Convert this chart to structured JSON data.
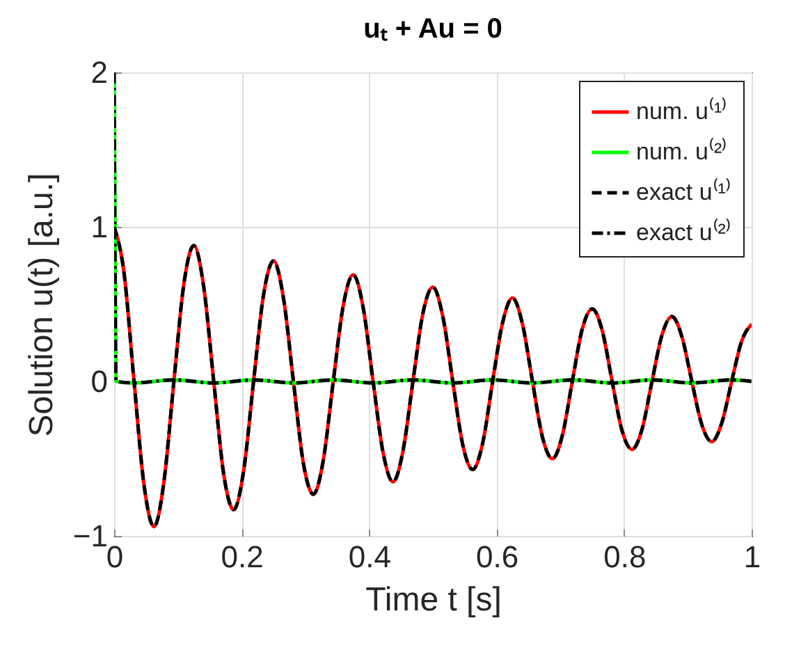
{
  "chart_data": {
    "type": "line",
    "title": "uₜ + Au = 0",
    "xlabel": "Time t [s]",
    "ylabel": "Solution u(t) [a.u.]",
    "xlim": [
      0,
      1
    ],
    "xticks": [
      0,
      0.2,
      0.4,
      0.6,
      0.8,
      1
    ],
    "ylim": [
      -1,
      2
    ],
    "yticks": [
      -1,
      0,
      1,
      2
    ],
    "grid": true,
    "legend": "top right",
    "series": [
      {
        "name": "num. u⁽¹⁾",
        "color": "#ff0000",
        "line_style": "solid",
        "x": [
          0,
          0.015625,
          0.03125,
          0.046875,
          0.0625,
          0.078125,
          0.09375,
          0.109375,
          0.125,
          0.140625,
          0.15625,
          0.171875,
          0.1875,
          0.203125,
          0.21875,
          0.234375,
          0.25,
          0.265625,
          0.28125,
          0.296875,
          0.3125,
          0.328125,
          0.34375,
          0.359375,
          0.375,
          0.390625,
          0.40625,
          0.421875,
          0.4375,
          0.453125,
          0.46875,
          0.484375,
          0.5,
          0.515625,
          0.53125,
          0.546875,
          0.5625,
          0.578125,
          0.59375,
          0.609375,
          0.625,
          0.640625,
          0.65625,
          0.671875,
          0.6875,
          0.703125,
          0.71875,
          0.734375,
          0.75,
          0.765625,
          0.78125,
          0.796875,
          0.8125,
          0.828125,
          0.84375,
          0.859375,
          0.875,
          0.890625,
          0.90625,
          0.921875,
          0.9375,
          0.953125,
          0.96875,
          0.984375,
          1
        ],
        "values": [
          1,
          0.7,
          0,
          -0.67,
          -0.94,
          -0.65,
          0,
          0.63,
          0.88,
          0.61,
          0,
          -0.6,
          -0.83,
          -0.58,
          0,
          0.56,
          0.78,
          0.54,
          0,
          -0.53,
          -0.73,
          -0.51,
          0,
          0.49,
          0.69,
          0.48,
          0,
          -0.46,
          -0.65,
          -0.45,
          0,
          0.44,
          0.61,
          0.42,
          0,
          -0.41,
          -0.57,
          -0.4,
          0,
          0.38,
          0.54,
          0.37,
          0,
          -0.36,
          -0.5,
          -0.35,
          0,
          0.34,
          0.47,
          0.33,
          0,
          -0.32,
          -0.44,
          -0.31,
          0,
          0.3,
          0.42,
          0.29,
          0,
          -0.28,
          -0.39,
          -0.27,
          0,
          0.26,
          0.37
        ]
      },
      {
        "name": "num. u⁽²⁾",
        "color": "#00ff00",
        "line_style": "solid",
        "x": [
          0,
          0.003,
          0.03125,
          0.09375,
          0.15625,
          0.21875,
          0.28125,
          0.34375,
          0.40625,
          0.46875,
          0.53125,
          0.59375,
          0.65625,
          0.71875,
          0.78125,
          0.84375,
          0.90625,
          0.96875,
          1
        ],
        "values": [
          2,
          0,
          -0.01,
          0.01,
          -0.01,
          0.01,
          -0.01,
          0.01,
          -0.01,
          0.01,
          -0.01,
          0.01,
          -0.01,
          0.01,
          -0.01,
          0.01,
          -0.01,
          0.01,
          0
        ]
      },
      {
        "name": "exact u⁽¹⁾",
        "color": "#000000",
        "line_style": "dashed",
        "x": [
          0,
          0.015625,
          0.03125,
          0.046875,
          0.0625,
          0.078125,
          0.09375,
          0.109375,
          0.125,
          0.140625,
          0.15625,
          0.171875,
          0.1875,
          0.203125,
          0.21875,
          0.234375,
          0.25,
          0.265625,
          0.28125,
          0.296875,
          0.3125,
          0.328125,
          0.34375,
          0.359375,
          0.375,
          0.390625,
          0.40625,
          0.421875,
          0.4375,
          0.453125,
          0.46875,
          0.484375,
          0.5,
          0.515625,
          0.53125,
          0.546875,
          0.5625,
          0.578125,
          0.59375,
          0.609375,
          0.625,
          0.640625,
          0.65625,
          0.671875,
          0.6875,
          0.703125,
          0.71875,
          0.734375,
          0.75,
          0.765625,
          0.78125,
          0.796875,
          0.8125,
          0.828125,
          0.84375,
          0.859375,
          0.875,
          0.890625,
          0.90625,
          0.921875,
          0.9375,
          0.953125,
          0.96875,
          0.984375,
          1
        ],
        "values": [
          1,
          0.7,
          0,
          -0.67,
          -0.94,
          -0.65,
          0,
          0.63,
          0.88,
          0.61,
          0,
          -0.6,
          -0.83,
          -0.58,
          0,
          0.56,
          0.78,
          0.54,
          0,
          -0.53,
          -0.73,
          -0.51,
          0,
          0.49,
          0.69,
          0.48,
          0,
          -0.46,
          -0.65,
          -0.45,
          0,
          0.44,
          0.61,
          0.42,
          0,
          -0.41,
          -0.57,
          -0.4,
          0,
          0.38,
          0.54,
          0.37,
          0,
          -0.36,
          -0.5,
          -0.35,
          0,
          0.34,
          0.47,
          0.33,
          0,
          -0.32,
          -0.44,
          -0.31,
          0,
          0.3,
          0.42,
          0.29,
          0,
          -0.28,
          -0.39,
          -0.27,
          0,
          0.26,
          0.37
        ]
      },
      {
        "name": "exact u⁽²⁾",
        "color": "#000000",
        "line_style": "dotted",
        "x": [
          0,
          0.003,
          0.03125,
          0.09375,
          0.15625,
          0.21875,
          0.28125,
          0.34375,
          0.40625,
          0.46875,
          0.53125,
          0.59375,
          0.65625,
          0.71875,
          0.78125,
          0.84375,
          0.90625,
          0.96875,
          1
        ],
        "values": [
          2,
          0,
          -0.01,
          0.01,
          -0.01,
          0.01,
          -0.01,
          0.01,
          -0.01,
          0.01,
          -0.01,
          0.01,
          -0.01,
          0.01,
          -0.01,
          0.01,
          -0.01,
          0.01,
          0
        ]
      }
    ]
  }
}
